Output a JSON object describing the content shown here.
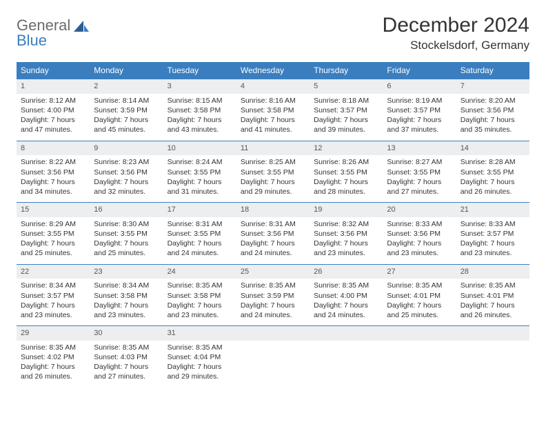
{
  "logo": {
    "line1": "General",
    "line2": "Blue"
  },
  "title": "December 2024",
  "location": "Stockelsdorf, Germany",
  "header_color": "#3a7ebf",
  "daynum_bg": "#eceeef",
  "days": [
    "Sunday",
    "Monday",
    "Tuesday",
    "Wednesday",
    "Thursday",
    "Friday",
    "Saturday"
  ],
  "weeks": [
    [
      {
        "n": "1",
        "sr": "8:12 AM",
        "ss": "4:00 PM",
        "dl": "7 hours and 47 minutes."
      },
      {
        "n": "2",
        "sr": "8:14 AM",
        "ss": "3:59 PM",
        "dl": "7 hours and 45 minutes."
      },
      {
        "n": "3",
        "sr": "8:15 AM",
        "ss": "3:58 PM",
        "dl": "7 hours and 43 minutes."
      },
      {
        "n": "4",
        "sr": "8:16 AM",
        "ss": "3:58 PM",
        "dl": "7 hours and 41 minutes."
      },
      {
        "n": "5",
        "sr": "8:18 AM",
        "ss": "3:57 PM",
        "dl": "7 hours and 39 minutes."
      },
      {
        "n": "6",
        "sr": "8:19 AM",
        "ss": "3:57 PM",
        "dl": "7 hours and 37 minutes."
      },
      {
        "n": "7",
        "sr": "8:20 AM",
        "ss": "3:56 PM",
        "dl": "7 hours and 35 minutes."
      }
    ],
    [
      {
        "n": "8",
        "sr": "8:22 AM",
        "ss": "3:56 PM",
        "dl": "7 hours and 34 minutes."
      },
      {
        "n": "9",
        "sr": "8:23 AM",
        "ss": "3:56 PM",
        "dl": "7 hours and 32 minutes."
      },
      {
        "n": "10",
        "sr": "8:24 AM",
        "ss": "3:55 PM",
        "dl": "7 hours and 31 minutes."
      },
      {
        "n": "11",
        "sr": "8:25 AM",
        "ss": "3:55 PM",
        "dl": "7 hours and 29 minutes."
      },
      {
        "n": "12",
        "sr": "8:26 AM",
        "ss": "3:55 PM",
        "dl": "7 hours and 28 minutes."
      },
      {
        "n": "13",
        "sr": "8:27 AM",
        "ss": "3:55 PM",
        "dl": "7 hours and 27 minutes."
      },
      {
        "n": "14",
        "sr": "8:28 AM",
        "ss": "3:55 PM",
        "dl": "7 hours and 26 minutes."
      }
    ],
    [
      {
        "n": "15",
        "sr": "8:29 AM",
        "ss": "3:55 PM",
        "dl": "7 hours and 25 minutes."
      },
      {
        "n": "16",
        "sr": "8:30 AM",
        "ss": "3:55 PM",
        "dl": "7 hours and 25 minutes."
      },
      {
        "n": "17",
        "sr": "8:31 AM",
        "ss": "3:55 PM",
        "dl": "7 hours and 24 minutes."
      },
      {
        "n": "18",
        "sr": "8:31 AM",
        "ss": "3:56 PM",
        "dl": "7 hours and 24 minutes."
      },
      {
        "n": "19",
        "sr": "8:32 AM",
        "ss": "3:56 PM",
        "dl": "7 hours and 23 minutes."
      },
      {
        "n": "20",
        "sr": "8:33 AM",
        "ss": "3:56 PM",
        "dl": "7 hours and 23 minutes."
      },
      {
        "n": "21",
        "sr": "8:33 AM",
        "ss": "3:57 PM",
        "dl": "7 hours and 23 minutes."
      }
    ],
    [
      {
        "n": "22",
        "sr": "8:34 AM",
        "ss": "3:57 PM",
        "dl": "7 hours and 23 minutes."
      },
      {
        "n": "23",
        "sr": "8:34 AM",
        "ss": "3:58 PM",
        "dl": "7 hours and 23 minutes."
      },
      {
        "n": "24",
        "sr": "8:35 AM",
        "ss": "3:58 PM",
        "dl": "7 hours and 23 minutes."
      },
      {
        "n": "25",
        "sr": "8:35 AM",
        "ss": "3:59 PM",
        "dl": "7 hours and 24 minutes."
      },
      {
        "n": "26",
        "sr": "8:35 AM",
        "ss": "4:00 PM",
        "dl": "7 hours and 24 minutes."
      },
      {
        "n": "27",
        "sr": "8:35 AM",
        "ss": "4:01 PM",
        "dl": "7 hours and 25 minutes."
      },
      {
        "n": "28",
        "sr": "8:35 AM",
        "ss": "4:01 PM",
        "dl": "7 hours and 26 minutes."
      }
    ],
    [
      {
        "n": "29",
        "sr": "8:35 AM",
        "ss": "4:02 PM",
        "dl": "7 hours and 26 minutes."
      },
      {
        "n": "30",
        "sr": "8:35 AM",
        "ss": "4:03 PM",
        "dl": "7 hours and 27 minutes."
      },
      {
        "n": "31",
        "sr": "8:35 AM",
        "ss": "4:04 PM",
        "dl": "7 hours and 29 minutes."
      },
      null,
      null,
      null,
      null
    ]
  ],
  "labels": {
    "sunrise": "Sunrise:",
    "sunset": "Sunset:",
    "daylight": "Daylight:"
  }
}
